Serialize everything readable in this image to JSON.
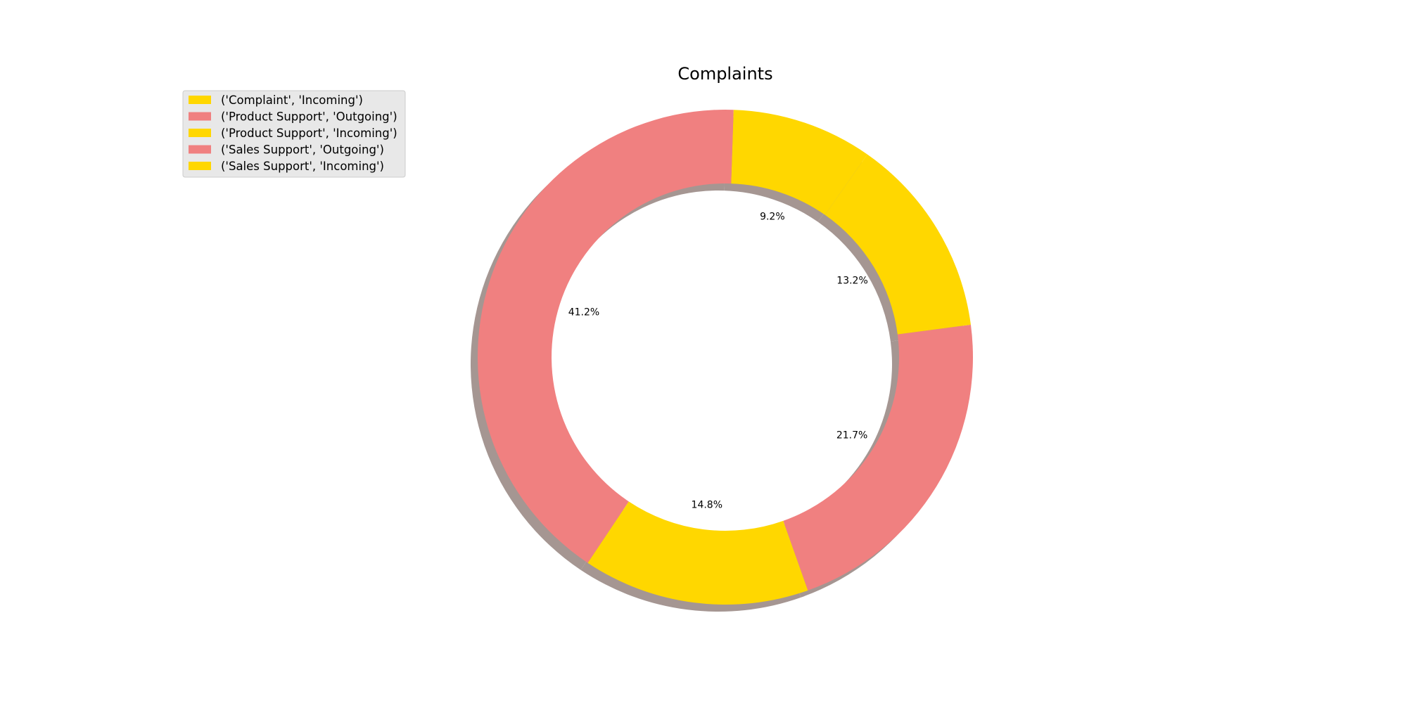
{
  "chart_data": {
    "type": "pie",
    "style": "donut",
    "title": "Complaints",
    "shadow": true,
    "legend_position": "upper-left",
    "start_angle_deg": 55,
    "direction": "counterclockwise",
    "categories": [
      "('Complaint', 'Incoming')",
      "('Product Support', 'Outgoing')",
      "('Product Support', 'Incoming')",
      "('Sales Support', 'Outgoing')",
      "('Sales Support', 'Incoming')"
    ],
    "values": [
      9.2,
      41.2,
      14.8,
      21.7,
      13.2
    ],
    "labels": [
      "9.2%",
      "41.2%",
      "14.8%",
      "21.7%",
      "13.2%"
    ],
    "colors": [
      "#FFD700",
      "#F08080",
      "#FFD700",
      "#F08080",
      "#FFD700"
    ],
    "shadow_color": "#A0908C"
  }
}
